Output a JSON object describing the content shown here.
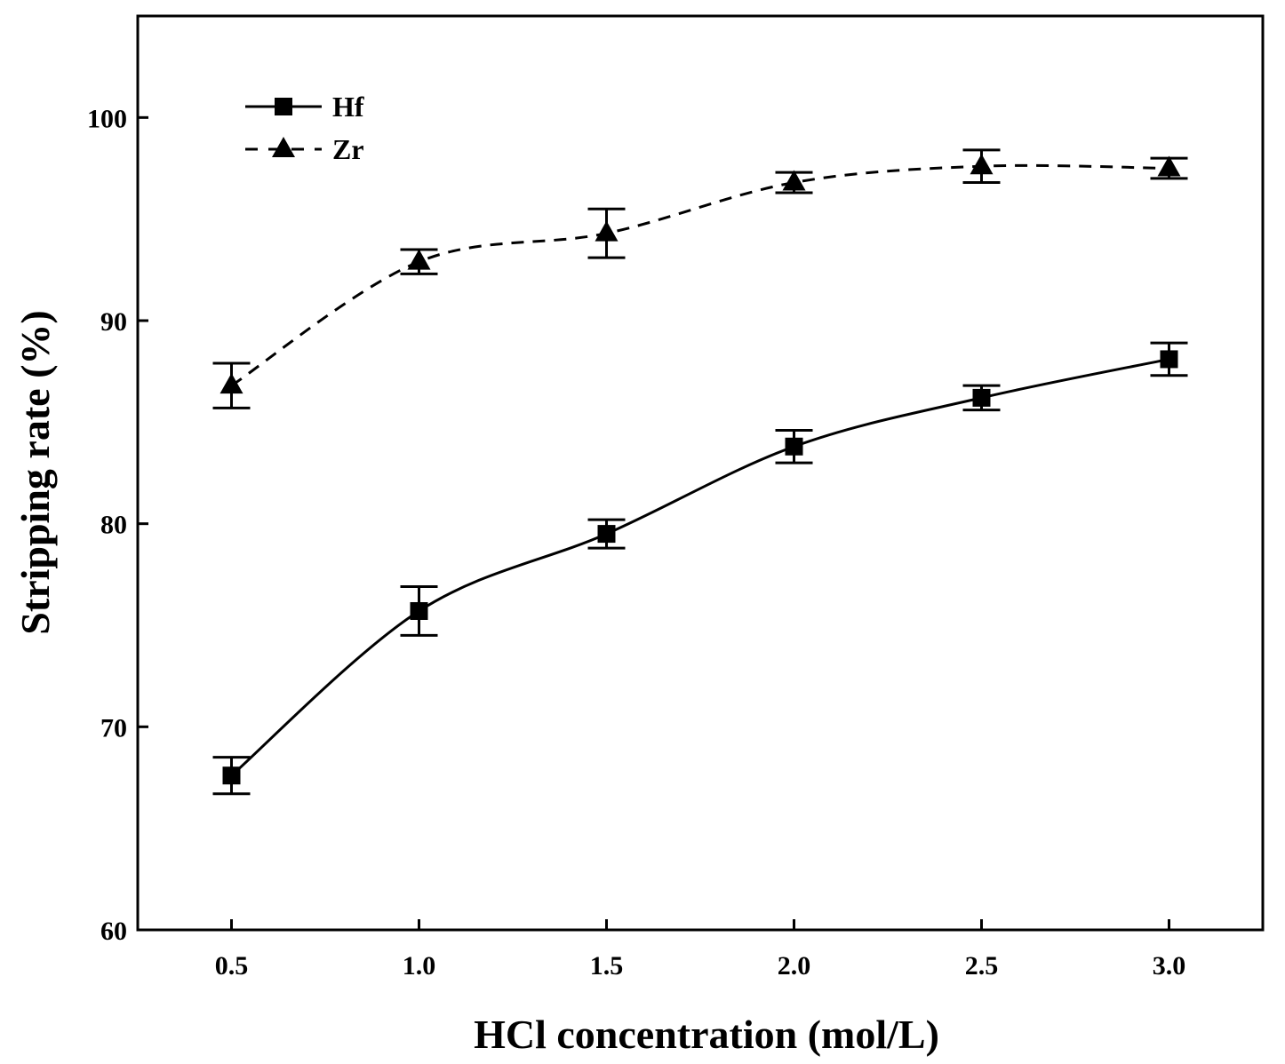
{
  "chart_data": {
    "type": "line",
    "title": "",
    "xlabel": "HCl concentration (mol/L)",
    "ylabel": "Stripping rate (%)",
    "xlim": [
      0.25,
      3.25
    ],
    "ylim": [
      60,
      105
    ],
    "x_ticks": [
      "0.5",
      "1.0",
      "1.5",
      "2.0",
      "2.5",
      "3.0"
    ],
    "y_ticks": [
      "60",
      "70",
      "80",
      "90",
      "100"
    ],
    "legend_position": "top-left",
    "grid": false,
    "colors": {
      "line": "#000000",
      "background": "#ffffff"
    },
    "series": [
      {
        "name": "Hf",
        "marker": "square",
        "line_style": "solid",
        "x": [
          0.5,
          1.0,
          1.5,
          2.0,
          2.5,
          3.0
        ],
        "y": [
          67.6,
          75.7,
          79.5,
          83.8,
          86.2,
          88.1
        ],
        "error": [
          0.9,
          1.2,
          0.7,
          0.8,
          0.6,
          0.8
        ]
      },
      {
        "name": "Zr",
        "marker": "triangle",
        "line_style": "dashed",
        "x": [
          0.5,
          1.0,
          1.5,
          2.0,
          2.5,
          3.0
        ],
        "y": [
          86.8,
          92.9,
          94.3,
          96.8,
          97.6,
          97.5
        ],
        "error": [
          1.1,
          0.6,
          1.2,
          0.5,
          0.8,
          0.5
        ]
      }
    ]
  }
}
